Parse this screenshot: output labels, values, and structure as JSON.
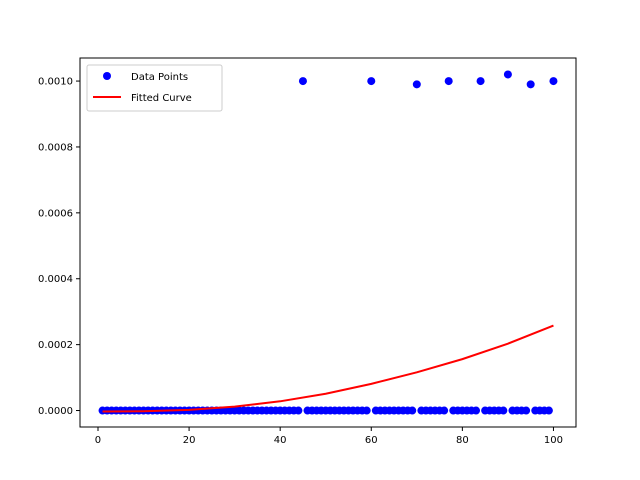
{
  "chart_data": {
    "type": "scatter",
    "title": "",
    "xlabel": "",
    "ylabel": "",
    "xlim": [
      -3.95,
      104.95
    ],
    "ylim": [
      -5e-05,
      0.00107
    ],
    "xticks": [
      0,
      20,
      40,
      60,
      80,
      100
    ],
    "yticks": [
      0.0,
      0.0002,
      0.0004,
      0.0006,
      0.0008,
      0.001
    ],
    "ytick_labels": [
      "0.0000",
      "0.0002",
      "0.0004",
      "0.0006",
      "0.0008",
      "0.0010"
    ],
    "grid": false,
    "legend": "top-left",
    "series": [
      {
        "name": "Data Points",
        "kind": "scatter",
        "color": "#0000ff",
        "high_points": [
          {
            "x": 45,
            "y": 0.001
          },
          {
            "x": 60,
            "y": 0.001
          },
          {
            "x": 70,
            "y": 0.00099
          },
          {
            "x": 77,
            "y": 0.001
          },
          {
            "x": 84,
            "y": 0.001
          },
          {
            "x": 90,
            "y": 0.00102
          },
          {
            "x": 95,
            "y": 0.00099
          },
          {
            "x": 100,
            "y": 0.001
          }
        ],
        "baseline_x_range": [
          1,
          100
        ],
        "baseline_y": 0.0
      },
      {
        "name": "Fitted Curve",
        "kind": "line",
        "color": "#ff0000",
        "points": [
          {
            "x": 1,
            "y": -3e-06
          },
          {
            "x": 10,
            "y": -2e-06
          },
          {
            "x": 20,
            "y": 2e-06
          },
          {
            "x": 30,
            "y": 1.2e-05
          },
          {
            "x": 40,
            "y": 2.8e-05
          },
          {
            "x": 50,
            "y": 5.1e-05
          },
          {
            "x": 60,
            "y": 8.1e-05
          },
          {
            "x": 70,
            "y": 0.000116
          },
          {
            "x": 80,
            "y": 0.000156
          },
          {
            "x": 90,
            "y": 0.000203
          },
          {
            "x": 100,
            "y": 0.000258
          }
        ]
      }
    ]
  }
}
